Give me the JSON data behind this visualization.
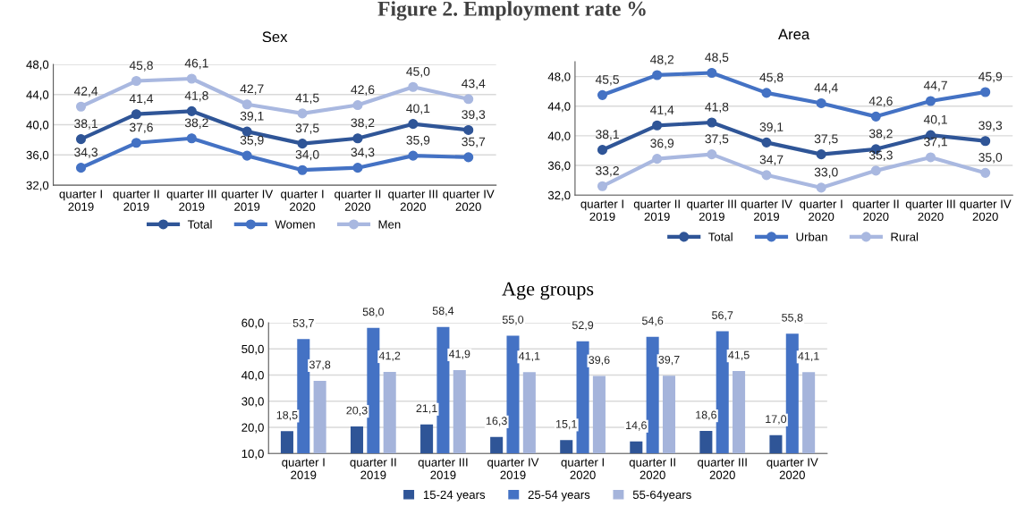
{
  "chart_data": [
    {
      "type": "line",
      "title": "Sex",
      "annotations": [
        "Figure 2. Employment rate %"
      ],
      "categories": [
        "quarter I\n2019",
        "quarter II\n2019",
        "quarter III\n2019",
        "quarter IV\n2019",
        "quarter I\n2020",
        "quarter II\n2020",
        "quarter III\n2020",
        "quarter IV\n2020"
      ],
      "series": [
        {
          "name": "Total",
          "color": "#2f5597",
          "values": [
            38.1,
            41.4,
            41.8,
            39.1,
            37.5,
            38.2,
            40.1,
            39.3
          ],
          "value_labels": [
            "38,1",
            "41,4",
            "41,8",
            "39,1",
            "37,5",
            "38,2",
            "40,1",
            "39,3"
          ]
        },
        {
          "name": "Women",
          "color": "#4472c4",
          "values": [
            34.3,
            37.6,
            38.2,
            35.9,
            34.0,
            34.3,
            35.9,
            35.7
          ],
          "value_labels": [
            "34,3",
            "37,6",
            "38,2",
            "35,9",
            "34,0",
            "34,3",
            "35,9",
            "35,7"
          ]
        },
        {
          "name": "Men",
          "color": "#a9b8e0",
          "values": [
            42.4,
            45.8,
            46.1,
            42.7,
            41.5,
            42.6,
            45.0,
            43.4
          ],
          "value_labels": [
            "42,4",
            "45,8",
            "46,1",
            "42,7",
            "41,5",
            "42,6",
            "45,0",
            "43,4"
          ]
        }
      ],
      "ylim": [
        32,
        48
      ],
      "yticks": [
        {
          "value": 32,
          "label": "32,0"
        },
        {
          "value": 36,
          "label": "36,0"
        },
        {
          "value": 40,
          "label": "40,0"
        },
        {
          "value": 44,
          "label": "44,0"
        },
        {
          "value": 48,
          "label": "48,0"
        }
      ],
      "grid": "y",
      "legend": "bottom",
      "marker": "circle",
      "line_style": "solid"
    },
    {
      "type": "line",
      "title": "Area",
      "categories": [
        "quarter I\n2019",
        "quarter II\n2019",
        "quarter III\n2019",
        "quarter IV\n2019",
        "quarter I\n2020",
        "quarter II\n2020",
        "quarter III\n2020",
        "quarter IV\n2020"
      ],
      "series": [
        {
          "name": "Total",
          "color": "#2f5597",
          "values": [
            38.1,
            41.4,
            41.8,
            39.1,
            37.5,
            38.2,
            40.1,
            39.3
          ],
          "value_labels": [
            "38,1",
            "41,4",
            "41,8",
            "39,1",
            "37,5",
            "38,2",
            "40,1",
            "39,3"
          ]
        },
        {
          "name": "Urban",
          "color": "#4472c4",
          "values": [
            45.5,
            48.2,
            48.5,
            45.8,
            44.4,
            42.6,
            44.7,
            45.9
          ],
          "value_labels": [
            "45,5",
            "48,2",
            "48,5",
            "45,8",
            "44,4",
            "42,6",
            "44,7",
            "45,9"
          ]
        },
        {
          "name": "Rural",
          "color": "#a9b8e0",
          "values": [
            33.2,
            36.9,
            37.5,
            34.7,
            33.0,
            35.3,
            37.1,
            35.0
          ],
          "value_labels": [
            "33,2",
            "36,9",
            "37,5",
            "34,7",
            "33,0",
            "35,3",
            "37,1",
            "35,0"
          ]
        }
      ],
      "ylim": [
        32,
        50
      ],
      "yticks": [
        {
          "value": 32,
          "label": "32,0"
        },
        {
          "value": 36,
          "label": "36,0"
        },
        {
          "value": 40,
          "label": "40,0"
        },
        {
          "value": 44,
          "label": "44,0"
        },
        {
          "value": 48,
          "label": "48,0"
        }
      ],
      "grid": "y",
      "legend": "bottom",
      "marker": "circle",
      "line_style": "solid"
    },
    {
      "type": "bar",
      "title": "Age groups",
      "categories": [
        "quarter I\n2019",
        "quarter II\n2019",
        "quarter III\n2019",
        "quarter IV\n2019",
        "quarter I\n2020",
        "quarter II\n2020",
        "quarter III\n2020",
        "quarter IV\n2020"
      ],
      "series": [
        {
          "name": "15-24 years",
          "color": "#2f5597",
          "values": [
            18.5,
            20.3,
            21.1,
            16.3,
            15.1,
            14.6,
            18.6,
            17.0
          ],
          "value_labels": [
            "18,5",
            "20,3",
            "21,1",
            "16,3",
            "15,1",
            "14,6",
            "18,6",
            "17,0"
          ]
        },
        {
          "name": "25-54 years",
          "color": "#4472c4",
          "values": [
            53.7,
            58.0,
            58.4,
            55.0,
            52.9,
            54.6,
            56.7,
            55.8
          ],
          "value_labels": [
            "53,7",
            "58,0",
            "58,4",
            "55,0",
            "52,9",
            "54,6",
            "56,7",
            "55,8"
          ]
        },
        {
          "name": "55-64years",
          "color": "#a5b4db",
          "values": [
            37.8,
            41.2,
            41.9,
            41.1,
            39.6,
            39.7,
            41.5,
            41.1
          ],
          "value_labels": [
            "37,8",
            "41,2",
            "41,9",
            "41,1",
            "39,6",
            "39,7",
            "41,5",
            "41,1"
          ]
        }
      ],
      "ylim": [
        10,
        60
      ],
      "yticks": [
        {
          "value": 10,
          "label": "10,0"
        },
        {
          "value": 20,
          "label": "20,0"
        },
        {
          "value": 30,
          "label": "30,0"
        },
        {
          "value": 40,
          "label": "40,0"
        },
        {
          "value": 50,
          "label": "50,0"
        },
        {
          "value": 60,
          "label": "60,0"
        }
      ],
      "grid": "y",
      "legend": "bottom"
    }
  ]
}
